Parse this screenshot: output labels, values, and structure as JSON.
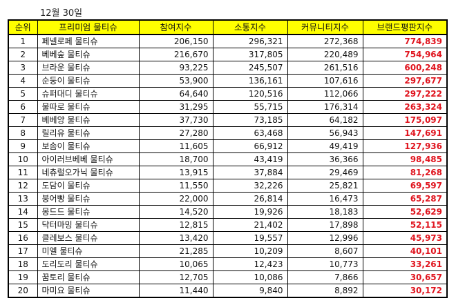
{
  "date_label": "12월 30일",
  "table": {
    "headers": [
      "순위",
      "프리미엄 물티슈",
      "참여지수",
      "소통지수",
      "커뮤니티지수",
      "브랜드평판지수"
    ],
    "rows": [
      {
        "rank": "1",
        "name": "페넬로페 물티슈",
        "participation": "206,150",
        "communication": "296,321",
        "community": "272,368",
        "brand": "774,839"
      },
      {
        "rank": "2",
        "name": "베베숲 물티슈",
        "participation": "216,670",
        "communication": "317,805",
        "community": "220,489",
        "brand": "754,964"
      },
      {
        "rank": "3",
        "name": "브라운 물티슈",
        "participation": "93,225",
        "communication": "245,507",
        "community": "261,516",
        "brand": "600,248"
      },
      {
        "rank": "4",
        "name": "순둥이 물티슈",
        "participation": "53,900",
        "communication": "136,161",
        "community": "107,616",
        "brand": "297,677"
      },
      {
        "rank": "5",
        "name": "슈퍼대디 물티슈",
        "participation": "64,640",
        "communication": "120,516",
        "community": "112,066",
        "brand": "297,222"
      },
      {
        "rank": "6",
        "name": "물따로 물티슈",
        "participation": "31,295",
        "communication": "55,715",
        "community": "176,314",
        "brand": "263,324"
      },
      {
        "rank": "7",
        "name": "베베앙 물티슈",
        "participation": "37,730",
        "communication": "73,185",
        "community": "64,182",
        "brand": "175,097"
      },
      {
        "rank": "8",
        "name": "릴리유 물티슈",
        "participation": "27,280",
        "communication": "63,468",
        "community": "56,943",
        "brand": "147,691"
      },
      {
        "rank": "9",
        "name": "보솜이 물티슈",
        "participation": "11,605",
        "communication": "66,912",
        "community": "49,419",
        "brand": "127,936"
      },
      {
        "rank": "10",
        "name": "아이러브베베 물티슈",
        "participation": "18,700",
        "communication": "43,419",
        "community": "36,366",
        "brand": "98,485"
      },
      {
        "rank": "11",
        "name": "네츄럴오가닉 물티슈",
        "participation": "13,915",
        "communication": "37,884",
        "community": "29,469",
        "brand": "81,268"
      },
      {
        "rank": "12",
        "name": "도담이 물티슈",
        "participation": "11,550",
        "communication": "32,226",
        "community": "25,821",
        "brand": "69,597"
      },
      {
        "rank": "13",
        "name": "붕어빵 물티슈",
        "participation": "22,000",
        "communication": "26,814",
        "community": "16,473",
        "brand": "65,287"
      },
      {
        "rank": "14",
        "name": "몽드드 물티슈",
        "participation": "14,520",
        "communication": "19,926",
        "community": "18,183",
        "brand": "52,629"
      },
      {
        "rank": "15",
        "name": "닥터마밍 물티슈",
        "participation": "12,815",
        "communication": "21,402",
        "community": "17,898",
        "brand": "52,115"
      },
      {
        "rank": "16",
        "name": "클레보스 물티슈",
        "participation": "13,420",
        "communication": "19,557",
        "community": "12,996",
        "brand": "45,973"
      },
      {
        "rank": "17",
        "name": "미엘 물티슈",
        "participation": "21,285",
        "communication": "10,209",
        "community": "8,607",
        "brand": "40,101"
      },
      {
        "rank": "18",
        "name": "도리도리 물티슈",
        "participation": "10,065",
        "communication": "12,423",
        "community": "10,773",
        "brand": "33,261"
      },
      {
        "rank": "19",
        "name": "꿈토리 물티슈",
        "participation": "12,705",
        "communication": "10,086",
        "community": "7,866",
        "brand": "30,657"
      },
      {
        "rank": "20",
        "name": "마미요 물티슈",
        "participation": "11,440",
        "communication": "9,840",
        "community": "8,892",
        "brand": "30,172"
      }
    ]
  },
  "colors": {
    "header_bg": "#ffff00",
    "brand_value": "#e0141e"
  }
}
